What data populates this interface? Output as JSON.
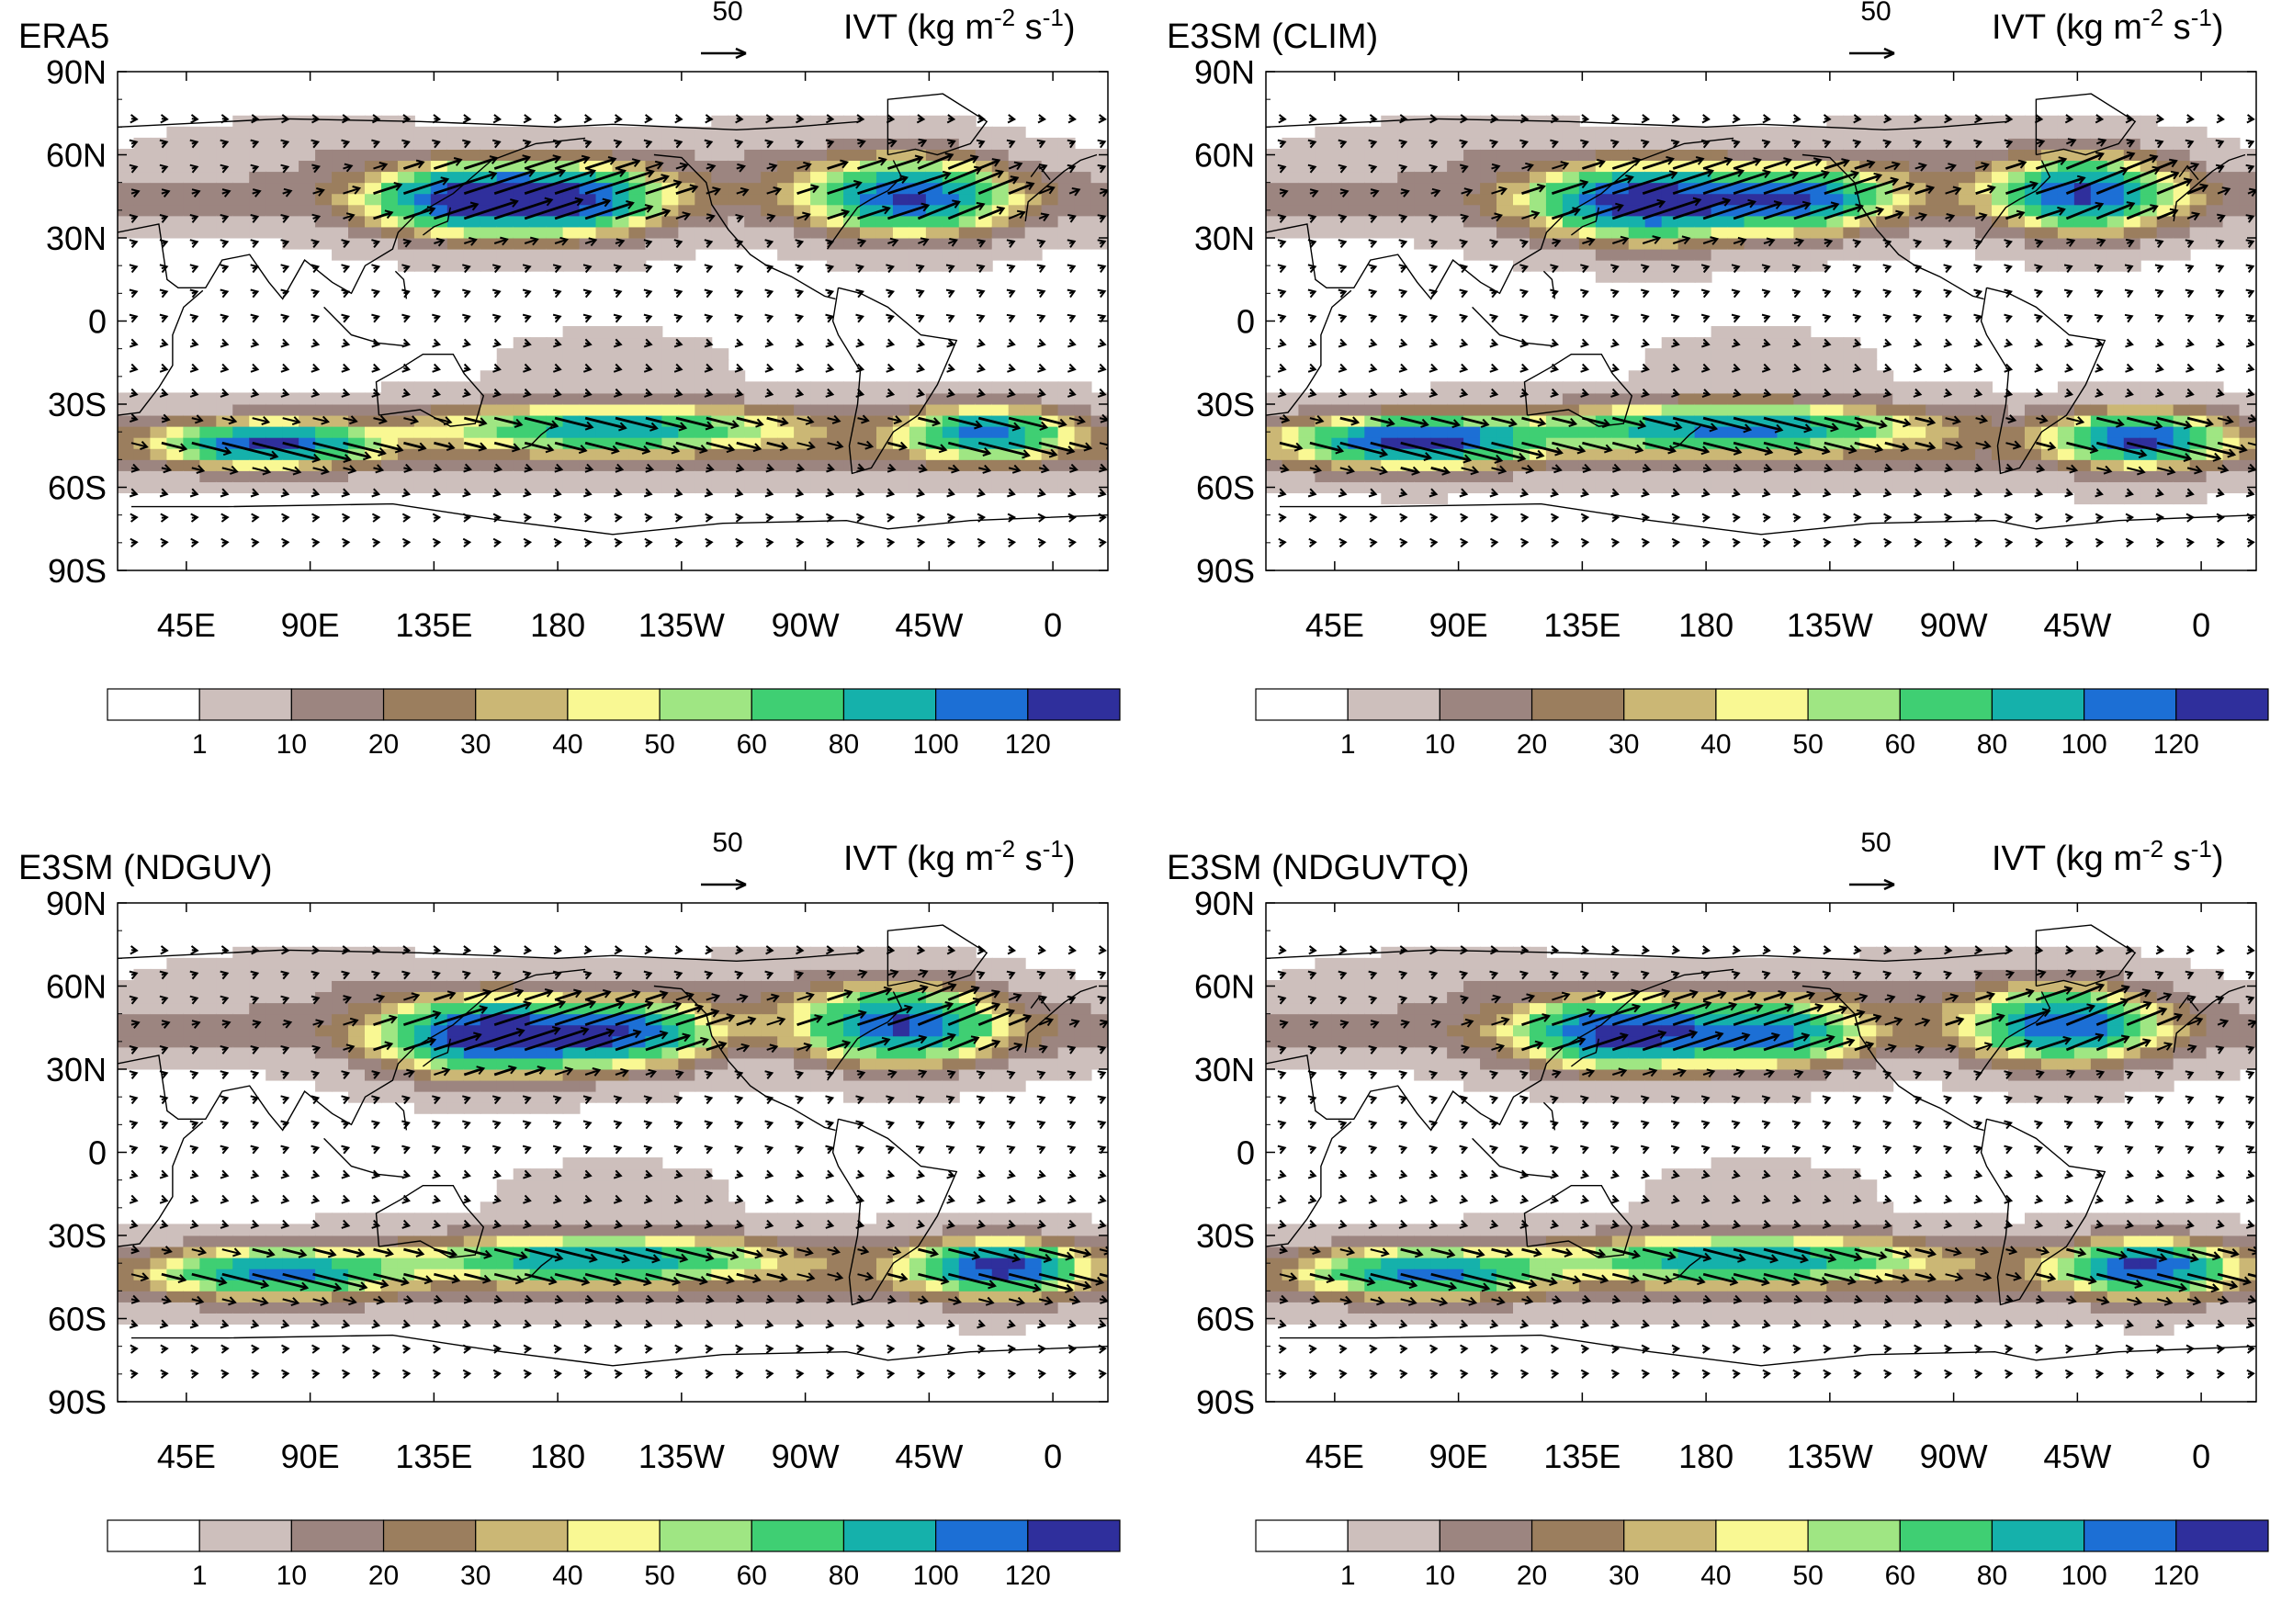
{
  "figure": {
    "ivt_label": "IVT (kg m",
    "ivt_exp1": "-2",
    "ivt_mid": " s",
    "ivt_exp2": "-1",
    "ivt_close": ")",
    "ref_vector_value": "50",
    "lat_labels": [
      "90N",
      "60N",
      "30N",
      "0",
      "30S",
      "60S",
      "90S"
    ],
    "lon_labels": [
      "45E",
      "90E",
      "135E",
      "180",
      "135W",
      "90W",
      "45W",
      "0"
    ],
    "colorbar_labels": [
      "1",
      "10",
      "20",
      "30",
      "40",
      "50",
      "60",
      "80",
      "100",
      "120"
    ],
    "colorbar_colors": [
      "#ffffff",
      "#cdbfbc",
      "#9c8580",
      "#9b7e5e",
      "#cbb775",
      "#f9f893",
      "#9fe683",
      "#3fcf73",
      "#15b1ab",
      "#1c6fd5",
      "#2f2f9c"
    ]
  },
  "panels": [
    {
      "title": "ERA5"
    },
    {
      "title": "E3SM (CLIM)"
    },
    {
      "title": "E3SM (NDGUV)"
    },
    {
      "title": "E3SM (NDGUVTQ)"
    }
  ]
}
